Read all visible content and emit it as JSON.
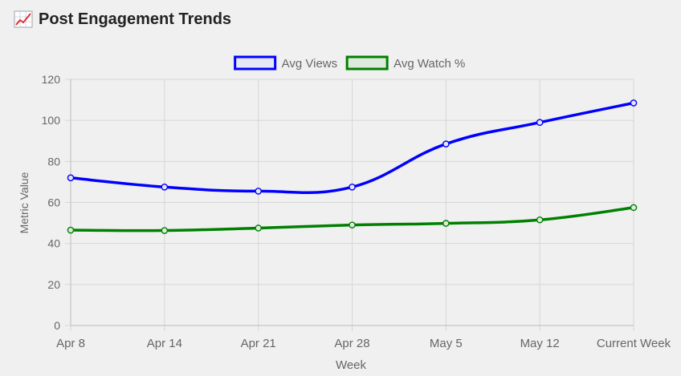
{
  "header": {
    "title": "Post Engagement Trends",
    "icon": "chart-increasing-icon"
  },
  "chart_data": {
    "type": "line",
    "x": [
      "Apr 8",
      "Apr 14",
      "Apr 21",
      "Apr 28",
      "May 5",
      "May 12",
      "Current Week"
    ],
    "series": [
      {
        "name": "Avg Views",
        "color": "#0000ff",
        "fill": "#e6e6f7",
        "values": [
          72,
          67.5,
          65.5,
          67.5,
          88.5,
          99,
          108.5
        ]
      },
      {
        "name": "Avg Watch %",
        "color": "#008000",
        "fill": "#dfeadf",
        "values": [
          46.5,
          46.3,
          47.5,
          49,
          49.8,
          51.5,
          57.5
        ]
      }
    ],
    "xlabel": "Week",
    "ylabel": "Metric Value",
    "ylim": [
      0,
      120
    ],
    "yticks": [
      0,
      20,
      40,
      60,
      80,
      100,
      120
    ],
    "grid": true,
    "legend": "top-center"
  }
}
